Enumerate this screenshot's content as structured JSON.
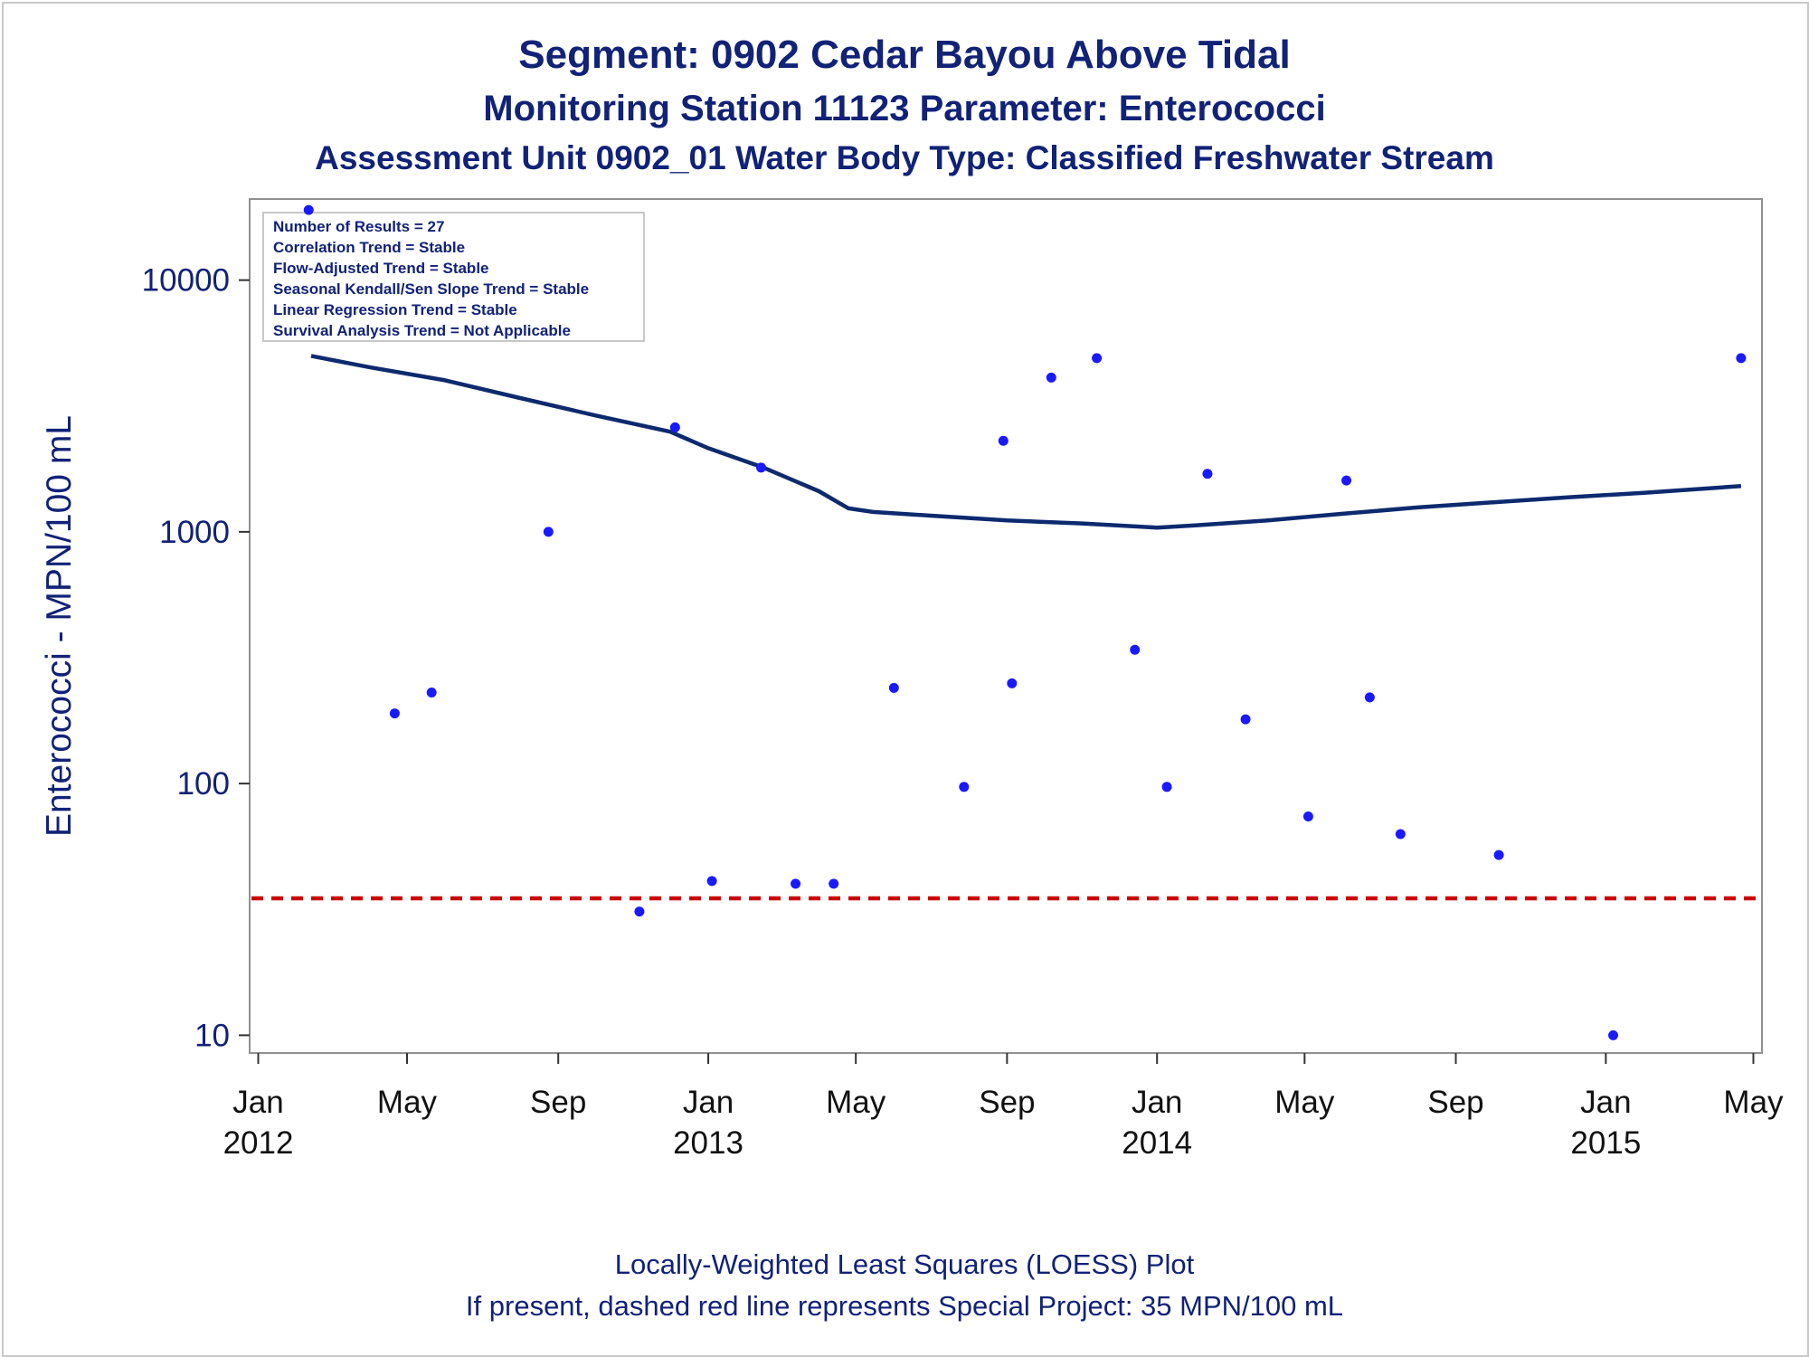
{
  "title": {
    "line1": "Segment: 0902  Cedar Bayou Above Tidal",
    "line2": "Monitoring Station 11123 Parameter: Enterococci",
    "line3": "Assessment Unit 0902_01   Water Body Type: Classified Freshwater Stream"
  },
  "footer": {
    "line1": "Locally-Weighted Least Squares (LOESS) Plot",
    "line2": "If present, dashed red line represents Special Project: 35 MPN/100 mL"
  },
  "legend": {
    "lines": [
      "Number of Results = 27",
      "Correlation Trend = Stable",
      "Flow-Adjusted Trend = Stable",
      "Seasonal Kendall/Sen Slope Trend = Stable",
      "Linear Regression Trend = Stable",
      "Survival Analysis Trend = Not Applicable"
    ]
  },
  "chart_data": {
    "type": "scatter",
    "ylabel": "Enterococci - MPN/100 mL",
    "y_scale": "log",
    "ylim": [
      8.5,
      21000
    ],
    "xlim": [
      "2011-12-25",
      "2015-05-08"
    ],
    "y_ticks": [
      10,
      100,
      1000,
      10000
    ],
    "y_tick_labels": [
      "10",
      "100",
      "1000",
      "10000"
    ],
    "x_ticks": [
      "2012-01-01",
      "2012-05-01",
      "2012-09-01",
      "2013-01-01",
      "2013-05-01",
      "2013-09-01",
      "2014-01-01",
      "2014-05-01",
      "2014-09-01",
      "2015-01-01",
      "2015-05-01"
    ],
    "x_tick_labels": [
      [
        "Jan",
        "2012"
      ],
      [
        "May",
        ""
      ],
      [
        "Sep",
        ""
      ],
      [
        "Jan",
        "2013"
      ],
      [
        "May",
        ""
      ],
      [
        "Sep",
        ""
      ],
      [
        "Jan",
        "2014"
      ],
      [
        "May",
        ""
      ],
      [
        "Sep",
        ""
      ],
      [
        "Jan",
        "2015"
      ],
      [
        "May",
        ""
      ]
    ],
    "points": [
      {
        "x": "2012-02-11",
        "y": 19000
      },
      {
        "x": "2012-04-21",
        "y": 190
      },
      {
        "x": "2012-05-21",
        "y": 230
      },
      {
        "x": "2012-08-24",
        "y": 1000
      },
      {
        "x": "2012-11-06",
        "y": 31
      },
      {
        "x": "2012-12-05",
        "y": 2600
      },
      {
        "x": "2013-01-04",
        "y": 41
      },
      {
        "x": "2013-02-13",
        "y": 1800
      },
      {
        "x": "2013-03-13",
        "y": 40
      },
      {
        "x": "2013-04-13",
        "y": 40
      },
      {
        "x": "2013-06-01",
        "y": 240
      },
      {
        "x": "2013-07-28",
        "y": 97
      },
      {
        "x": "2013-08-29",
        "y": 2300
      },
      {
        "x": "2013-09-05",
        "y": 250
      },
      {
        "x": "2013-10-07",
        "y": 4100
      },
      {
        "x": "2013-11-13",
        "y": 4900
      },
      {
        "x": "2013-12-14",
        "y": 340
      },
      {
        "x": "2014-01-09",
        "y": 97
      },
      {
        "x": "2014-02-11",
        "y": 1700
      },
      {
        "x": "2014-03-14",
        "y": 180
      },
      {
        "x": "2014-05-04",
        "y": 74
      },
      {
        "x": "2014-06-04",
        "y": 1600
      },
      {
        "x": "2014-06-23",
        "y": 220
      },
      {
        "x": "2014-07-18",
        "y": 63
      },
      {
        "x": "2014-10-06",
        "y": 52
      },
      {
        "x": "2015-01-07",
        "y": 10
      },
      {
        "x": "2015-04-21",
        "y": 4900
      }
    ],
    "loess": [
      {
        "x": "2012-02-13",
        "y": 5000
      },
      {
        "x": "2012-04-01",
        "y": 4500
      },
      {
        "x": "2012-06-01",
        "y": 4000
      },
      {
        "x": "2012-08-01",
        "y": 3400
      },
      {
        "x": "2012-10-01",
        "y": 2900
      },
      {
        "x": "2012-12-01",
        "y": 2500
      },
      {
        "x": "2013-01-01",
        "y": 2150
      },
      {
        "x": "2013-02-15",
        "y": 1800
      },
      {
        "x": "2013-04-01",
        "y": 1450
      },
      {
        "x": "2013-04-25",
        "y": 1240
      },
      {
        "x": "2013-05-15",
        "y": 1200
      },
      {
        "x": "2013-07-01",
        "y": 1160
      },
      {
        "x": "2013-09-01",
        "y": 1110
      },
      {
        "x": "2013-11-01",
        "y": 1080
      },
      {
        "x": "2014-01-01",
        "y": 1040
      },
      {
        "x": "2014-02-01",
        "y": 1060
      },
      {
        "x": "2014-04-01",
        "y": 1110
      },
      {
        "x": "2014-06-01",
        "y": 1180
      },
      {
        "x": "2014-08-01",
        "y": 1250
      },
      {
        "x": "2014-10-01",
        "y": 1310
      },
      {
        "x": "2014-12-01",
        "y": 1370
      },
      {
        "x": "2015-02-01",
        "y": 1430
      },
      {
        "x": "2015-04-21",
        "y": 1520
      }
    ],
    "reference_line": {
      "y": 35
    },
    "colors": {
      "points": "#1a1aff",
      "loess": "#0d2a6e",
      "reference": "#cc0000",
      "axis_text": "#112277"
    }
  }
}
